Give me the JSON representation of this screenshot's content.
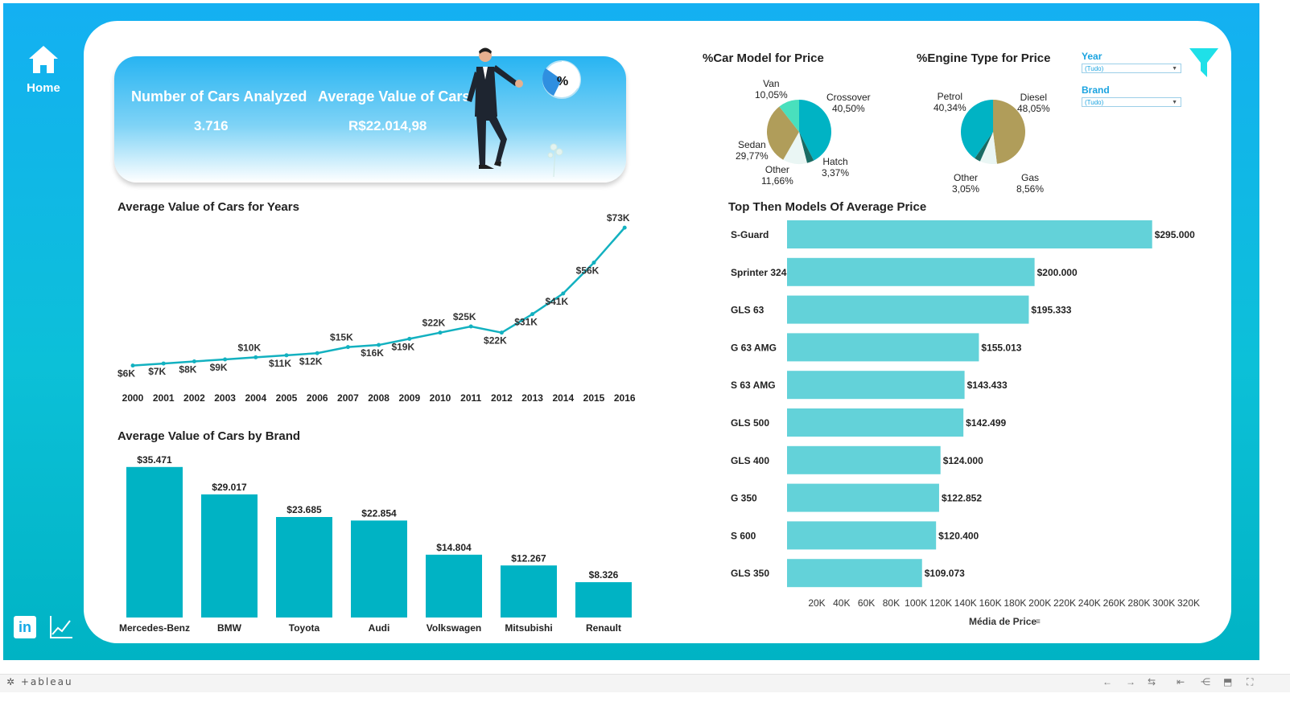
{
  "nav": {
    "home_label": "Home",
    "linkedin_label": "in"
  },
  "kpi": {
    "cars_title": "Number of Cars Analyzed",
    "cars_value": "3.716",
    "avg_title": "Average Value of Cars",
    "avg_value": "R$22.014,98",
    "badge": "%"
  },
  "line_chart": {
    "title": "Average Value of Cars for Years"
  },
  "brand_chart": {
    "title": "Average Value of Cars by Brand"
  },
  "models_chart": {
    "title": "Top Then Models Of Average Price",
    "xlabel": "Média de Price"
  },
  "pie_model": {
    "title": "%Car Model for Price"
  },
  "pie_engine": {
    "title": "%Engine Type for Price"
  },
  "filters": {
    "year_label": "Year",
    "year_value": "(Tudo)",
    "brand_label": "Brand",
    "brand_value": "(Tudo)"
  },
  "footer": {
    "logo": "+ableau"
  },
  "colors": {
    "teal": "#00b3c4",
    "light_teal": "#5fd0d8",
    "olive": "#b09d5a",
    "dark_teal": "#1a6b63",
    "mint": "#49e0bd",
    "pale": "#d8f2ee"
  },
  "chart_data": [
    {
      "type": "line",
      "x": [
        "2000",
        "2001",
        "2002",
        "2003",
        "2004",
        "2005",
        "2006",
        "2007",
        "2008",
        "2009",
        "2010",
        "2011",
        "2012",
        "2013",
        "2014",
        "2015",
        "2016"
      ],
      "values": [
        6,
        7,
        8,
        9,
        10,
        11,
        12,
        15,
        16,
        19,
        22,
        25,
        22,
        31,
        41,
        56,
        73
      ],
      "labels": [
        "$6K",
        "$7K",
        "$8K",
        "$9K",
        "$10K",
        "$11K",
        "$12K",
        "$15K",
        "$16K",
        "$19K",
        "$22K",
        "$25K",
        "$22K",
        "$31K",
        "$41K",
        "$56K",
        "$73K"
      ],
      "label_pos": [
        "below",
        "below",
        "below",
        "below",
        "above",
        "below",
        "below",
        "above",
        "below",
        "below",
        "above",
        "above",
        "below",
        "below",
        "below",
        "below",
        "above"
      ],
      "ylim": [
        0,
        75
      ]
    },
    {
      "type": "bar",
      "categories": [
        "Mercedes-Benz",
        "BMW",
        "Toyota",
        "Audi",
        "Volkswagen",
        "Mitsubishi",
        "Renault"
      ],
      "values": [
        35471,
        29017,
        23685,
        22854,
        14804,
        12267,
        8326
      ],
      "labels": [
        "$35.471",
        "$29.017",
        "$23.685",
        "$22.854",
        "$14.804",
        "$12.267",
        "$8.326"
      ],
      "ylim": [
        0,
        36000
      ]
    },
    {
      "type": "bar",
      "orientation": "horizontal",
      "categories": [
        "S-Guard",
        "Sprinter 324",
        "GLS 63",
        "G 63 AMG",
        "S 63 AMG",
        "GLS 500",
        "GLS 400",
        "G 350",
        "S 600",
        "GLS 350"
      ],
      "values": [
        295000,
        200000,
        195333,
        155013,
        143433,
        142499,
        124000,
        122852,
        120400,
        109073
      ],
      "labels": [
        "$295.000",
        "$200.000",
        "$195.333",
        "$155.013",
        "$143.433",
        "$142.499",
        "$124.000",
        "$122.852",
        "$120.400",
        "$109.073"
      ],
      "ticks": [
        "20K",
        "40K",
        "60K",
        "80K",
        "100K",
        "120K",
        "140K",
        "160K",
        "180K",
        "200K",
        "220K",
        "240K",
        "260K",
        "280K",
        "300K",
        "320K"
      ],
      "xlabel": "Média de Price",
      "xlim": [
        0,
        330000
      ]
    },
    {
      "type": "pie",
      "title": "%Car Model for Price",
      "slices": [
        {
          "name": "Crossover",
          "label": "40,50%",
          "value": 40.5,
          "color": "#00b3c4"
        },
        {
          "name": "Hatch",
          "label": "3,37%",
          "value": 3.37,
          "color": "#1a6b63"
        },
        {
          "name": "Other",
          "label": "11,66%",
          "value": 11.66,
          "color": "#eaf6f4"
        },
        {
          "name": "Sedan",
          "label": "29,77%",
          "value": 29.77,
          "color": "#b09d5a"
        },
        {
          "name": "Van",
          "label": "10,05%",
          "value": 10.05,
          "color": "#49e0bd"
        }
      ]
    },
    {
      "type": "pie",
      "title": "%Engine Type for Price",
      "slices": [
        {
          "name": "Diesel",
          "label": "48,05%",
          "value": 48.05,
          "color": "#b09d5a"
        },
        {
          "name": "Gas",
          "label": "8,56%",
          "value": 8.56,
          "color": "#eaf6f4"
        },
        {
          "name": "Other",
          "label": "3,05%",
          "value": 3.05,
          "color": "#1a6b63"
        },
        {
          "name": "Petrol",
          "label": "40,34%",
          "value": 40.34,
          "color": "#00b3c4"
        }
      ]
    }
  ]
}
